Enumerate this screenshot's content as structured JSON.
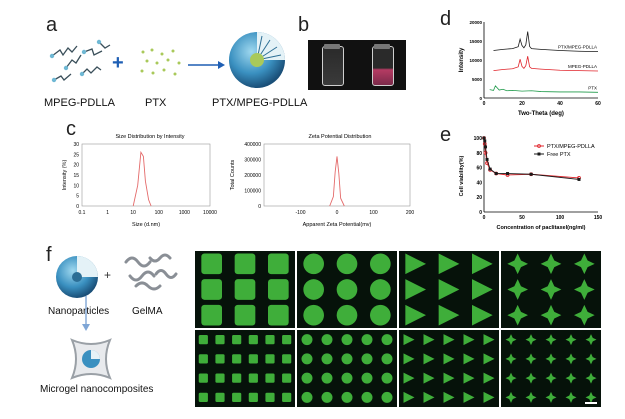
{
  "panels": {
    "a": {
      "label": "a",
      "items": [
        "MPEG-PDLLA",
        "PTX",
        "PTX/MPEG-PDLLA"
      ],
      "plus": "+"
    },
    "b": {
      "label": "b"
    },
    "c": {
      "label": "c",
      "size_chart": {
        "title": "Size Distribution by Intensity",
        "xlabel": "Size (d.nm)",
        "ylabel": "Intensity (%)",
        "yticks": [
          "0",
          "5",
          "10",
          "15",
          "20",
          "25",
          "30"
        ],
        "xticks": [
          "0.1",
          "1",
          "10",
          "100",
          "1000",
          "10000"
        ]
      },
      "zeta_chart": {
        "title": "Zeta Potential Distribution",
        "xlabel": "Apparent Zeta Potential(mv)",
        "ylabel": "Total Counts",
        "yticks": [
          "0",
          "100000",
          "200000",
          "300000",
          "400000"
        ],
        "xticks": [
          "-100",
          "0",
          "100",
          "200"
        ]
      }
    },
    "d": {
      "label": "d",
      "xlabel": "Two-Theta (deg)",
      "ylabel": "Intensity",
      "xticks": [
        "0",
        "20",
        "40",
        "60"
      ],
      "yticks": [
        "0",
        "5000",
        "10000",
        "15000",
        "20000"
      ],
      "series": [
        "PTX/MPEG-PDLLA",
        "MPEG-PDLLA",
        "PTX"
      ],
      "colors": [
        "#1a1a1a",
        "#e0242b",
        "#1f9a4a"
      ]
    },
    "e": {
      "label": "e",
      "xlabel": "Concentration of paclitaxel(ng/ml)",
      "ylabel": "Cell viability(%)",
      "xticks": [
        "0",
        "50",
        "100",
        "150"
      ],
      "yticks": [
        "0",
        "20",
        "40",
        "60",
        "80",
        "100"
      ],
      "legend": [
        "PTX/MPEG-PDLLA",
        "Free PTX"
      ],
      "colors": [
        "#e0242b",
        "#1a1a1a"
      ]
    },
    "f": {
      "label": "f",
      "nanoparticles": "Nanoparticles",
      "gelma": "GelMA",
      "plus": "+",
      "composite": "Microgel nanocomposites"
    }
  },
  "chart_data": [
    {
      "type": "line",
      "title": "Size Distribution by Intensity",
      "xlabel": "Size (d.nm)",
      "ylabel": "Intensity (%)",
      "xscale": "log",
      "xlim": [
        0.1,
        10000
      ],
      "ylim": [
        0,
        30
      ],
      "series": [
        {
          "x": [
            10,
            15,
            20,
            25,
            30,
            40,
            50
          ],
          "values": [
            0,
            10,
            26,
            24,
            12,
            3,
            0
          ]
        }
      ]
    },
    {
      "type": "line",
      "title": "Zeta Potential Distribution",
      "xlabel": "Apparent Zeta Potential(mv)",
      "ylabel": "Total Counts",
      "xlim": [
        -200,
        200
      ],
      "ylim": [
        0,
        400000
      ],
      "series": [
        {
          "x": [
            -20,
            -10,
            -5,
            0,
            5,
            10,
            20
          ],
          "values": [
            0,
            60000,
            220000,
            320000,
            210000,
            50000,
            0
          ]
        }
      ]
    },
    {
      "type": "line",
      "xlabel": "Two-Theta (deg)",
      "ylabel": "Intensity",
      "xlim": [
        0,
        60
      ],
      "ylim": [
        0,
        20000
      ],
      "series": [
        {
          "name": "PTX/MPEG-PDLLA",
          "x": [
            5,
            10,
            15,
            18,
            19,
            20,
            21,
            22,
            23,
            24,
            25,
            30,
            40,
            50,
            60
          ],
          "values": [
            12500,
            12800,
            13000,
            13500,
            15500,
            13800,
            13200,
            14000,
            17500,
            13600,
            13000,
            12800,
            12500,
            12300,
            12200
          ]
        },
        {
          "name": "MPEG-PDLLA",
          "x": [
            5,
            10,
            15,
            18,
            19,
            20,
            21,
            22,
            23,
            24,
            25,
            30,
            40,
            50,
            60
          ],
          "values": [
            7200,
            7500,
            7700,
            8200,
            10200,
            8300,
            7800,
            8500,
            11000,
            8200,
            7800,
            7600,
            7300,
            7200,
            7100
          ]
        },
        {
          "name": "PTX",
          "x": [
            3,
            5,
            6,
            8,
            10,
            12,
            15,
            20,
            25,
            30,
            40,
            50,
            60
          ],
          "values": [
            2200,
            2000,
            3200,
            2100,
            2300,
            1900,
            2000,
            1800,
            1900,
            1700,
            1600,
            1600,
            1500
          ]
        }
      ]
    },
    {
      "type": "line",
      "xlabel": "Concentration of paclitaxel(ng/ml)",
      "ylabel": "Cell viability(%)",
      "xlim": [
        0,
        150
      ],
      "ylim": [
        0,
        100
      ],
      "series": [
        {
          "name": "PTX/MPEG-PDLLA",
          "x": [
            0,
            1,
            2,
            4,
            8,
            16,
            31,
            62,
            125
          ],
          "values": [
            100,
            92,
            80,
            66,
            57,
            52,
            50,
            51,
            46
          ]
        },
        {
          "name": "Free PTX",
          "x": [
            0,
            1,
            2,
            4,
            8,
            16,
            31,
            62,
            125
          ],
          "values": [
            100,
            96,
            88,
            71,
            58,
            52,
            52,
            51,
            44
          ]
        }
      ]
    }
  ]
}
